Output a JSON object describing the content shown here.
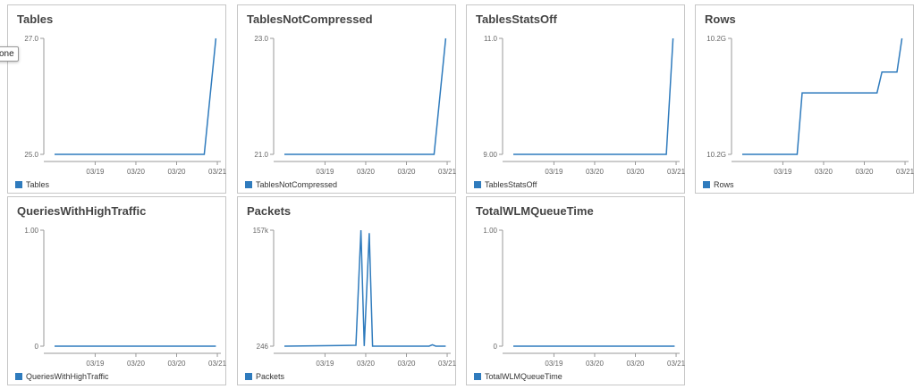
{
  "colors": {
    "series": "#2f7bbd",
    "axis": "#999999",
    "border": "#c6c6c6"
  },
  "tooltip": {
    "text": "one"
  },
  "chart_data": [
    {
      "type": "line",
      "title": "Tables",
      "legend": "Tables",
      "y_ticks": [
        "27.0",
        "25.0"
      ],
      "ylim": [
        25.0,
        27.0
      ],
      "x_ticks": [
        "03/19",
        "03/20",
        "03/20",
        "03/21"
      ],
      "series": [
        {
          "name": "Tables",
          "x": [
            0.0,
            0.9,
            0.97
          ],
          "y": [
            25.0,
            25.0,
            27.0
          ]
        }
      ]
    },
    {
      "type": "line",
      "title": "TablesNotCompressed",
      "legend": "TablesNotCompressed",
      "y_ticks": [
        "23.0",
        "21.0"
      ],
      "ylim": [
        21.0,
        23.0
      ],
      "x_ticks": [
        "03/19",
        "03/20",
        "03/20",
        "03/21"
      ],
      "series": [
        {
          "name": "TablesNotCompressed",
          "x": [
            0.0,
            0.9,
            0.97
          ],
          "y": [
            21.0,
            21.0,
            23.0
          ]
        }
      ]
    },
    {
      "type": "line",
      "title": "TablesStatsOff",
      "legend": "TablesStatsOff",
      "y_ticks": [
        "11.0",
        "9.00"
      ],
      "ylim": [
        9.0,
        11.0
      ],
      "x_ticks": [
        "03/19",
        "03/20",
        "03/20",
        "03/21"
      ],
      "series": [
        {
          "name": "TablesStatsOff",
          "x": [
            0.0,
            0.92,
            0.96
          ],
          "y": [
            9.0,
            9.0,
            11.0
          ]
        }
      ]
    },
    {
      "type": "line",
      "title": "Rows",
      "legend": "Rows",
      "y_ticks": [
        "10.2G",
        "10.2G"
      ],
      "ylim": [
        0,
        1
      ],
      "x_ticks": [
        "03/19",
        "03/20",
        "03/20",
        "03/21"
      ],
      "series": [
        {
          "name": "Rows",
          "x": [
            0.0,
            0.33,
            0.36,
            0.81,
            0.84,
            0.93,
            0.96
          ],
          "y": [
            0,
            0,
            0.53,
            0.53,
            0.71,
            0.71,
            1.0
          ]
        }
      ]
    },
    {
      "type": "line",
      "title": "QueriesWithHighTraffic",
      "legend": "QueriesWithHighTraffic",
      "y_ticks": [
        "1.00",
        "0"
      ],
      "ylim": [
        0,
        1
      ],
      "x_ticks": [
        "03/19",
        "03/20",
        "03/20",
        "03/21"
      ],
      "series": [
        {
          "name": "QueriesWithHighTraffic",
          "x": [
            0.0,
            0.97
          ],
          "y": [
            0,
            0
          ]
        }
      ]
    },
    {
      "type": "line",
      "title": "Packets",
      "legend": "Packets",
      "y_ticks": [
        "157k",
        "246"
      ],
      "ylim": [
        246,
        157000
      ],
      "x_ticks": [
        "03/19",
        "03/20",
        "03/20",
        "03/21"
      ],
      "series": [
        {
          "name": "Packets",
          "x": [
            0.0,
            0.43,
            0.46,
            0.48,
            0.51,
            0.53,
            0.87,
            0.89,
            0.91,
            0.97
          ],
          "y": [
            246,
            1500,
            157000,
            500,
            153000,
            246,
            246,
            2200,
            246,
            246
          ]
        }
      ]
    },
    {
      "type": "line",
      "title": "TotalWLMQueueTime",
      "legend": "TotalWLMQueueTime",
      "y_ticks": [
        "1.00",
        "0"
      ],
      "ylim": [
        0,
        1
      ],
      "x_ticks": [
        "03/19",
        "03/20",
        "03/20",
        "03/21"
      ],
      "series": [
        {
          "name": "TotalWLMQueueTime",
          "x": [
            0.0,
            0.97
          ],
          "y": [
            0,
            0
          ]
        }
      ]
    }
  ]
}
